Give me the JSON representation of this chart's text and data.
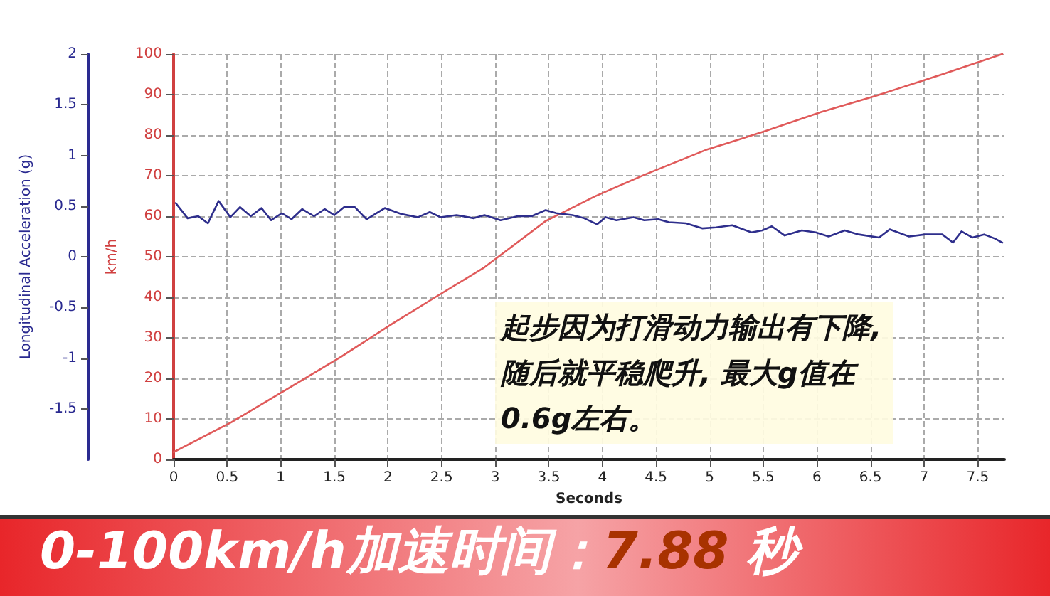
{
  "chart_data": {
    "type": "line",
    "xlabel": "Seconds",
    "ylabel": "km/h",
    "y2label": "Longitudinal Acceleration (g)",
    "xlim": [
      0,
      7.75
    ],
    "xticks": [
      0,
      0.5,
      1,
      1.5,
      2,
      2.5,
      3,
      3.5,
      4,
      4.5,
      5,
      5.5,
      6,
      6.5,
      7,
      7.5
    ],
    "ylim": [
      0,
      100
    ],
    "yticks": [
      0,
      10,
      20,
      30,
      40,
      50,
      60,
      70,
      80,
      90,
      100
    ],
    "y2lim": [
      -2,
      2
    ],
    "y2ticks": [
      -1.5,
      -1,
      -0.5,
      0,
      0.5,
      1,
      1.5,
      2
    ],
    "grid": true,
    "line_style": "solid",
    "marker": "none",
    "series": [
      {
        "color": "#e05a5a",
        "x": [
          0,
          0.54,
          1.05,
          1.56,
          2.03,
          2.44,
          2.9,
          3.47,
          3.93,
          4.39,
          4.96,
          5.52,
          6.04,
          6.55,
          7.17,
          7.73
        ],
        "values": [
          1.8,
          9.2,
          17.2,
          25.3,
          33.3,
          40,
          47.4,
          58.8,
          64.9,
          70.2,
          76.3,
          81,
          85.7,
          89.7,
          95,
          100
        ]
      },
      {
        "color": "#2e2e8c",
        "axis": "y2",
        "x": [
          0.02,
          0.13,
          0.23,
          0.32,
          0.42,
          0.53,
          0.62,
          0.72,
          0.82,
          0.91,
          1.01,
          1.1,
          1.2,
          1.31,
          1.41,
          1.5,
          1.59,
          1.69,
          1.8,
          1.97,
          2.13,
          2.28,
          2.39,
          2.49,
          2.64,
          2.8,
          2.9,
          3.05,
          3.21,
          3.34,
          3.47,
          3.57,
          3.72,
          3.83,
          3.95,
          4.03,
          4.13,
          4.29,
          4.39,
          4.52,
          4.62,
          4.78,
          4.93,
          5.06,
          5.21,
          5.39,
          5.49,
          5.58,
          5.7,
          5.86,
          5.99,
          6.11,
          6.26,
          6.39,
          6.58,
          6.68,
          6.86,
          7.01,
          7.17,
          7.27,
          7.35,
          7.45,
          7.56,
          7.66,
          7.73
        ],
        "values": [
          0.53,
          0.38,
          0.4,
          0.33,
          0.55,
          0.39,
          0.49,
          0.4,
          0.48,
          0.36,
          0.43,
          0.37,
          0.47,
          0.4,
          0.47,
          0.41,
          0.49,
          0.49,
          0.37,
          0.48,
          0.42,
          0.39,
          0.44,
          0.39,
          0.41,
          0.38,
          0.41,
          0.36,
          0.4,
          0.4,
          0.46,
          0.43,
          0.41,
          0.38,
          0.32,
          0.39,
          0.36,
          0.39,
          0.36,
          0.37,
          0.34,
          0.33,
          0.28,
          0.29,
          0.31,
          0.24,
          0.26,
          0.3,
          0.21,
          0.26,
          0.24,
          0.2,
          0.26,
          0.22,
          0.19,
          0.27,
          0.2,
          0.22,
          0.22,
          0.14,
          0.25,
          0.19,
          0.22,
          0.18,
          0.14
        ]
      }
    ],
    "annotations": [
      "起步因为打滑动力输出有下降,随后就平稳爬升, 最大g值在0.6g左右。",
      "0-100km/h加速时间：7.88 秒"
    ]
  }
}
